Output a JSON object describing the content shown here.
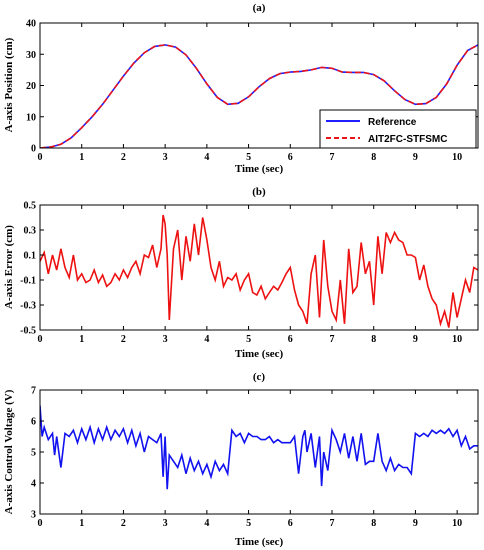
{
  "chart_data": [
    {
      "type": "line",
      "title": "(a)",
      "xlabel": "Time (sec)",
      "ylabel": "A-axis Position (cm)",
      "xlim": [
        0,
        10.5
      ],
      "ylim": [
        0,
        40
      ],
      "xticks": [
        0,
        1,
        2,
        3,
        4,
        5,
        6,
        7,
        8,
        9,
        10
      ],
      "yticks": [
        0,
        10,
        20,
        30,
        40
      ],
      "grid": false,
      "legend": "bottom-right",
      "series": [
        {
          "name": "Reference",
          "color": "#1f1fff",
          "style": "solid",
          "x": [
            0,
            0.25,
            0.5,
            0.75,
            1,
            1.25,
            1.5,
            1.75,
            2,
            2.25,
            2.5,
            2.75,
            3,
            3.25,
            3.5,
            3.75,
            4,
            4.25,
            4.5,
            4.75,
            5,
            5.25,
            5.5,
            5.75,
            6,
            6.25,
            6.5,
            6.75,
            7,
            7.25,
            7.5,
            7.75,
            8,
            8.25,
            8.5,
            8.75,
            9,
            9.25,
            9.5,
            9.75,
            10,
            10.25,
            10.5
          ],
          "y": [
            0,
            0.3,
            1.2,
            3.3,
            6.5,
            10,
            14,
            18.5,
            23,
            27.2,
            30.5,
            32.5,
            33,
            32.3,
            29.8,
            25.5,
            20.5,
            16.2,
            14,
            14.3,
            16.4,
            19.6,
            22.2,
            23.8,
            24.3,
            24.5,
            25,
            25.8,
            25.5,
            24.3,
            24.2,
            24.2,
            23.5,
            21.5,
            18.3,
            15.5,
            14,
            14.2,
            16.2,
            20.5,
            26.5,
            31.2,
            33
          ]
        },
        {
          "name": "AIT2FC-STFSMC",
          "color": "#e8141a",
          "style": "dashed",
          "x": [
            0,
            0.25,
            0.5,
            0.75,
            1,
            1.25,
            1.5,
            1.75,
            2,
            2.25,
            2.5,
            2.75,
            3,
            3.25,
            3.5,
            3.75,
            4,
            4.25,
            4.5,
            4.75,
            5,
            5.25,
            5.5,
            5.75,
            6,
            6.25,
            6.5,
            6.75,
            7,
            7.25,
            7.5,
            7.75,
            8,
            8.25,
            8.5,
            8.75,
            9,
            9.25,
            9.5,
            9.75,
            10,
            10.25,
            10.5
          ],
          "y": [
            0,
            0.3,
            1.2,
            3.3,
            6.5,
            10,
            14,
            18.5,
            23,
            27.2,
            30.5,
            32.5,
            33,
            32.3,
            29.8,
            25.5,
            20.5,
            16.2,
            14,
            14.3,
            16.4,
            19.6,
            22.2,
            23.8,
            24.3,
            24.5,
            25,
            25.8,
            25.5,
            24.3,
            24.2,
            24.2,
            23.5,
            21.5,
            18.3,
            15.5,
            14,
            14.2,
            16.2,
            20.5,
            26.5,
            31.2,
            33
          ]
        }
      ]
    },
    {
      "type": "line",
      "title": "(b)",
      "xlabel": "Time (sec)",
      "ylabel": "A-axis Error (cm)",
      "xlim": [
        0,
        10.5
      ],
      "ylim": [
        -0.5,
        0.5
      ],
      "xticks": [
        0,
        1,
        2,
        3,
        4,
        5,
        6,
        7,
        8,
        9,
        10
      ],
      "yticks": [
        -0.5,
        -0.3,
        -0.1,
        0.1,
        0.3,
        0.5
      ],
      "ytick_labels": [
        "-0.5",
        "-0.3",
        "-0.1",
        "0.1",
        "0.3",
        "0.5"
      ],
      "grid": false,
      "series": [
        {
          "color": "#ee1111",
          "x": [
            0,
            0.1,
            0.2,
            0.3,
            0.4,
            0.5,
            0.6,
            0.7,
            0.8,
            0.9,
            1,
            1.1,
            1.2,
            1.3,
            1.4,
            1.5,
            1.6,
            1.7,
            1.8,
            1.9,
            2,
            2.1,
            2.2,
            2.3,
            2.4,
            2.5,
            2.6,
            2.7,
            2.8,
            2.9,
            2.95,
            3,
            3.05,
            3.1,
            3.2,
            3.3,
            3.4,
            3.5,
            3.6,
            3.7,
            3.8,
            3.9,
            4,
            4.1,
            4.2,
            4.3,
            4.4,
            4.5,
            4.6,
            4.7,
            4.8,
            4.9,
            5,
            5.1,
            5.2,
            5.3,
            5.4,
            5.5,
            5.6,
            5.7,
            5.8,
            5.9,
            6,
            6.1,
            6.2,
            6.3,
            6.4,
            6.5,
            6.6,
            6.7,
            6.8,
            6.9,
            7,
            7.1,
            7.2,
            7.3,
            7.4,
            7.5,
            7.6,
            7.7,
            7.8,
            7.9,
            8,
            8.1,
            8.2,
            8.3,
            8.4,
            8.5,
            8.6,
            8.7,
            8.8,
            8.9,
            9,
            9.1,
            9.2,
            9.3,
            9.4,
            9.5,
            9.6,
            9.7,
            9.8,
            9.9,
            10,
            10.1,
            10.2,
            10.3,
            10.4,
            10.5
          ],
          "y": [
            0.05,
            0.12,
            -0.05,
            0.1,
            -0.02,
            0.15,
            0.0,
            -0.08,
            0.1,
            -0.1,
            -0.05,
            -0.12,
            -0.1,
            -0.02,
            -0.12,
            -0.06,
            -0.15,
            -0.12,
            -0.05,
            -0.1,
            -0.02,
            -0.08,
            0.0,
            0.05,
            -0.05,
            0.1,
            0.08,
            0.18,
            0.0,
            0.15,
            0.42,
            0.35,
            0.1,
            -0.42,
            0.15,
            0.3,
            -0.1,
            0.25,
            0.05,
            0.35,
            0.1,
            0.4,
            0.22,
            0.0,
            -0.1,
            0.05,
            -0.15,
            -0.08,
            -0.1,
            -0.05,
            -0.18,
            -0.1,
            -0.05,
            -0.2,
            -0.22,
            -0.15,
            -0.25,
            -0.2,
            -0.15,
            -0.18,
            -0.12,
            -0.05,
            0.0,
            -0.18,
            -0.3,
            -0.35,
            -0.45,
            -0.05,
            0.1,
            -0.4,
            0.22,
            -0.15,
            -0.35,
            -0.42,
            -0.1,
            -0.45,
            0.15,
            -0.2,
            -0.15,
            0.2,
            -0.05,
            0.05,
            -0.3,
            0.25,
            -0.05,
            0.28,
            0.2,
            0.28,
            0.22,
            0.2,
            0.1,
            0.1,
            0.08,
            -0.1,
            0.02,
            -0.15,
            -0.25,
            -0.3,
            -0.45,
            -0.35,
            -0.48,
            -0.2,
            -0.4,
            -0.25,
            -0.1,
            -0.2,
            0.0,
            -0.02
          ]
        }
      ]
    },
    {
      "type": "line",
      "title": "(c)",
      "xlabel": "Time (sec)",
      "ylabel": "A-axis Control Voltage (V)",
      "xlim": [
        0,
        10.5
      ],
      "ylim": [
        3,
        7
      ],
      "xticks": [
        0,
        1,
        2,
        3,
        4,
        5,
        6,
        7,
        8,
        9,
        10
      ],
      "yticks": [
        3,
        4,
        5,
        6,
        7
      ],
      "grid": false,
      "series": [
        {
          "color": "#1212f0",
          "x": [
            0,
            0.05,
            0.1,
            0.2,
            0.3,
            0.35,
            0.4,
            0.5,
            0.6,
            0.7,
            0.8,
            0.9,
            1,
            1.1,
            1.2,
            1.3,
            1.4,
            1.5,
            1.6,
            1.7,
            1.8,
            1.9,
            2,
            2.1,
            2.2,
            2.3,
            2.4,
            2.5,
            2.6,
            2.7,
            2.8,
            2.9,
            2.95,
            3,
            3.05,
            3.1,
            3.2,
            3.3,
            3.4,
            3.5,
            3.6,
            3.7,
            3.8,
            3.9,
            4,
            4.1,
            4.2,
            4.3,
            4.4,
            4.5,
            4.6,
            4.7,
            4.8,
            4.9,
            5,
            5.1,
            5.2,
            5.3,
            5.4,
            5.5,
            5.6,
            5.7,
            5.8,
            5.9,
            6,
            6.1,
            6.2,
            6.3,
            6.35,
            6.4,
            6.5,
            6.6,
            6.7,
            6.75,
            6.8,
            6.9,
            7,
            7.1,
            7.2,
            7.3,
            7.4,
            7.5,
            7.6,
            7.7,
            7.8,
            7.9,
            8,
            8.1,
            8.2,
            8.3,
            8.4,
            8.5,
            8.6,
            8.7,
            8.8,
            8.9,
            9,
            9.1,
            9.2,
            9.3,
            9.4,
            9.5,
            9.6,
            9.7,
            9.8,
            9.9,
            10,
            10.1,
            10.2,
            10.3,
            10.4,
            10.5
          ],
          "y": [
            6.5,
            5.5,
            5.8,
            5.4,
            5.6,
            4.9,
            5.5,
            4.5,
            5.6,
            5.5,
            5.7,
            5.3,
            5.75,
            5.4,
            5.8,
            5.3,
            5.75,
            5.4,
            5.8,
            5.4,
            5.7,
            5.5,
            5.75,
            5.3,
            5.7,
            5.2,
            5.6,
            5.0,
            5.5,
            5.4,
            5.3,
            5.6,
            4.2,
            5.5,
            3.8,
            4.9,
            4.7,
            4.5,
            4.9,
            4.3,
            4.8,
            4.4,
            4.7,
            4.3,
            4.6,
            4.2,
            4.7,
            4.4,
            4.6,
            4.3,
            5.7,
            5.5,
            5.6,
            5.3,
            5.6,
            5.5,
            5.5,
            5.4,
            5.4,
            5.5,
            5.3,
            5.4,
            5.3,
            5.3,
            5.3,
            5.5,
            4.3,
            5.5,
            5.7,
            5.0,
            5.6,
            4.5,
            5.5,
            3.9,
            5.0,
            4.4,
            5.7,
            5.4,
            5.0,
            5.6,
            4.8,
            5.5,
            4.7,
            5.6,
            4.6,
            4.7,
            4.7,
            5.6,
            4.7,
            4.4,
            4.8,
            4.4,
            4.6,
            4.5,
            4.5,
            4.3,
            5.6,
            5.5,
            5.6,
            5.5,
            5.7,
            5.6,
            5.7,
            5.6,
            5.75,
            5.5,
            5.7,
            5.2,
            5.5,
            5.1,
            5.2,
            5.2
          ]
        }
      ]
    }
  ]
}
